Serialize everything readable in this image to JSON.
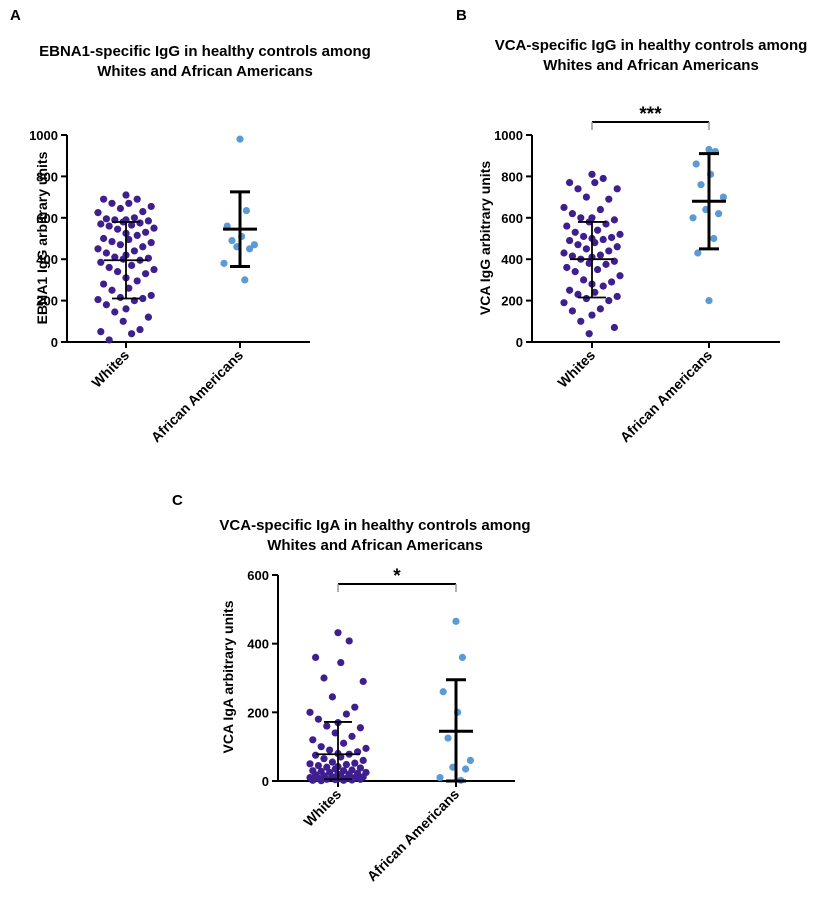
{
  "figure": {
    "dot_colors": {
      "whites": "#3f1f8f",
      "african_americans": "#5b9bd5"
    }
  },
  "chart_data": [
    {
      "panel": "A",
      "type": "scatter",
      "title": [
        "EBNA1-specific IgG in healthy controls among",
        "Whites and African Americans"
      ],
      "xlabel": "",
      "ylabel": "EBNA1 IgG arbitrary units",
      "ylim": [
        0,
        1000
      ],
      "yticks": [
        0,
        200,
        400,
        600,
        800,
        1000
      ],
      "ytick_labels": [
        "0",
        "200",
        "400",
        "600",
        "800",
        "1000"
      ],
      "categories": [
        "Whites",
        "African Americans"
      ],
      "significance": null,
      "groups": [
        {
          "name": "Whites",
          "mean": 395,
          "sd_upper": 580,
          "sd_lower": 210,
          "values": [
            710,
            690,
            690,
            670,
            670,
            655,
            645,
            630,
            625,
            600,
            595,
            590,
            590,
            585,
            580,
            575,
            570,
            565,
            560,
            550,
            545,
            530,
            525,
            515,
            500,
            495,
            485,
            480,
            470,
            460,
            450,
            440,
            430,
            420,
            410,
            405,
            400,
            395,
            385,
            370,
            360,
            350,
            340,
            330,
            310,
            295,
            280,
            260,
            250,
            225,
            215,
            210,
            205,
            200,
            180,
            160,
            145,
            120,
            100,
            60,
            50,
            40,
            10
          ]
        },
        {
          "name": "African Americans",
          "mean": 545,
          "sd_upper": 725,
          "sd_lower": 365,
          "values": [
            980,
            635,
            560,
            510,
            490,
            470,
            460,
            450,
            380,
            300
          ]
        }
      ]
    },
    {
      "panel": "B",
      "type": "scatter",
      "title": [
        "VCA-specific IgG in healthy controls among",
        "Whites and African Americans"
      ],
      "xlabel": "",
      "ylabel": "VCA IgG arbitrary units",
      "ylim": [
        0,
        1000
      ],
      "yticks": [
        0,
        200,
        400,
        600,
        800,
        1000
      ],
      "ytick_labels": [
        "0",
        "200",
        "400",
        "600",
        "800",
        "1000"
      ],
      "categories": [
        "Whites",
        "African Americans"
      ],
      "significance": "***",
      "groups": [
        {
          "name": "Whites",
          "mean": 400,
          "sd_upper": 580,
          "sd_lower": 215,
          "values": [
            810,
            790,
            770,
            770,
            740,
            740,
            700,
            690,
            650,
            640,
            620,
            600,
            600,
            590,
            580,
            570,
            560,
            540,
            530,
            520,
            510,
            505,
            500,
            495,
            490,
            480,
            470,
            460,
            450,
            440,
            430,
            420,
            415,
            410,
            400,
            390,
            380,
            375,
            360,
            350,
            340,
            320,
            300,
            290,
            280,
            270,
            250,
            240,
            230,
            220,
            210,
            200,
            190,
            160,
            150,
            130,
            100,
            70,
            40
          ]
        },
        {
          "name": "African Americans",
          "mean": 680,
          "sd_upper": 910,
          "sd_lower": 450,
          "values": [
            930,
            920,
            860,
            810,
            760,
            700,
            640,
            620,
            600,
            500,
            430,
            200
          ]
        }
      ]
    },
    {
      "panel": "C",
      "type": "scatter",
      "title": [
        "VCA-specific IgA in healthy controls among",
        "Whites and African Americans"
      ],
      "xlabel": "",
      "ylabel": "VCA IgA arbitrary units",
      "ylim": [
        0,
        600
      ],
      "yticks": [
        0,
        200,
        400,
        600
      ],
      "ytick_labels": [
        "0",
        "200",
        "400",
        "600"
      ],
      "categories": [
        "Whites",
        "African Americans"
      ],
      "significance": "*",
      "groups": [
        {
          "name": "Whites",
          "mean": 78,
          "sd_upper": 172,
          "sd_lower": 5,
          "values": [
            432,
            408,
            360,
            345,
            300,
            290,
            245,
            215,
            200,
            195,
            180,
            170,
            160,
            155,
            140,
            130,
            120,
            110,
            100,
            95,
            90,
            85,
            80,
            78,
            75,
            70,
            65,
            60,
            55,
            52,
            50,
            48,
            45,
            42,
            40,
            38,
            35,
            32,
            30,
            30,
            28,
            25,
            25,
            22,
            20,
            20,
            18,
            15,
            15,
            12,
            12,
            10,
            10,
            8,
            8,
            6,
            5,
            5,
            4,
            3,
            2,
            2,
            1
          ]
        },
        {
          "name": "African Americans",
          "mean": 145,
          "sd_upper": 295,
          "sd_lower": 0,
          "values": [
            465,
            360,
            260,
            200,
            125,
            60,
            40,
            35,
            10,
            2
          ]
        }
      ]
    }
  ]
}
